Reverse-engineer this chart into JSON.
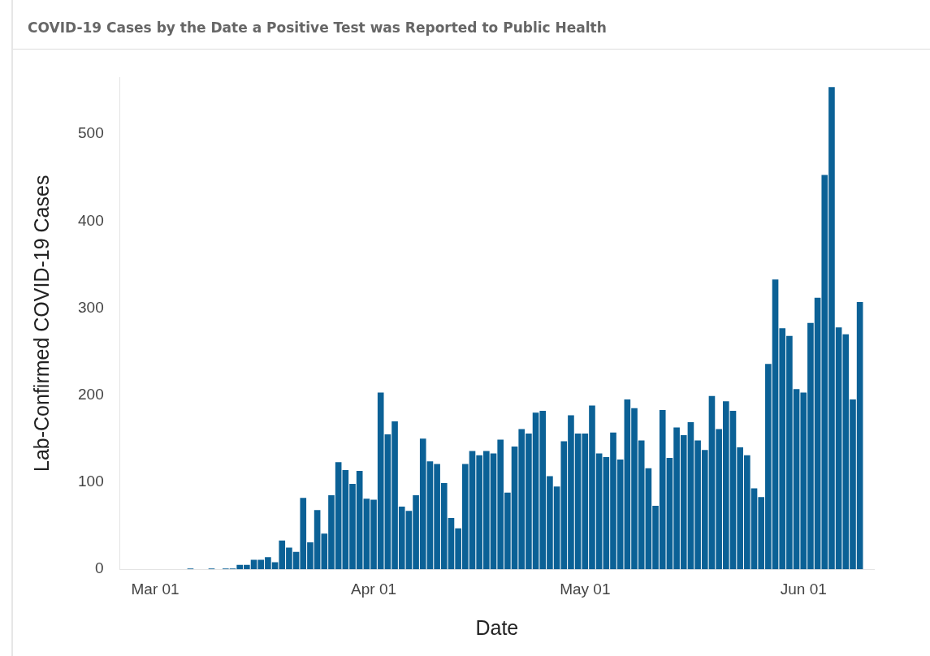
{
  "chart_data": {
    "type": "bar",
    "title": "COVID-19 Cases by the Date a Positive Test was Reported to Public Health",
    "xlabel": "Date",
    "ylabel": "Lab-Confirmed COVID-19 Cases",
    "x": [
      "--03-06",
      "--03-09",
      "--03-11",
      "--03-12",
      "--03-13",
      "--03-14",
      "--03-15",
      "--03-16",
      "--03-17",
      "--03-18",
      "--03-19",
      "--03-20",
      "--03-21",
      "--03-22",
      "--03-23",
      "--03-24",
      "--03-25",
      "--03-26",
      "--03-27",
      "--03-28",
      "--03-29",
      "--03-30",
      "--03-31",
      "--04-01",
      "--04-02",
      "--04-03",
      "--04-04",
      "--04-05",
      "--04-06",
      "--04-07",
      "--04-08",
      "--04-09",
      "--04-10",
      "--04-11",
      "--04-12",
      "--04-13",
      "--04-14",
      "--04-15",
      "--04-16",
      "--04-17",
      "--04-18",
      "--04-19",
      "--04-20",
      "--04-21",
      "--04-22",
      "--04-23",
      "--04-24",
      "--04-25",
      "--04-26",
      "--04-27",
      "--04-28",
      "--04-29",
      "--04-30",
      "--05-01",
      "--05-02",
      "--05-03",
      "--05-04",
      "--05-05",
      "--05-06",
      "--05-07",
      "--05-08",
      "--05-09",
      "--05-10",
      "--05-11",
      "--05-12",
      "--05-13",
      "--05-14",
      "--05-15",
      "--05-16",
      "--05-17",
      "--05-18",
      "--05-19",
      "--05-20",
      "--05-21",
      "--05-22",
      "--05-23",
      "--05-24",
      "--05-25",
      "--05-26",
      "--05-27",
      "--05-28",
      "--05-29",
      "--05-30",
      "--05-31",
      "--06-01",
      "--06-02",
      "--06-03",
      "--06-04",
      "--06-05",
      "--06-06",
      "--06-07",
      "--06-08",
      "--06-09"
    ],
    "values": [
      1,
      1,
      1,
      1,
      5,
      5,
      11,
      11,
      14,
      8,
      33,
      25,
      20,
      82,
      31,
      68,
      41,
      85,
      123,
      114,
      98,
      113,
      81,
      80,
      203,
      155,
      170,
      72,
      67,
      85,
      150,
      124,
      121,
      99,
      59,
      47,
      121,
      136,
      131,
      136,
      133,
      149,
      88,
      141,
      161,
      156,
      180,
      182,
      107,
      95,
      147,
      177,
      156,
      156,
      188,
      133,
      129,
      157,
      126,
      195,
      185,
      148,
      116,
      73,
      183,
      128,
      163,
      154,
      169,
      148,
      137,
      199,
      161,
      193,
      182,
      140,
      131,
      93,
      83,
      236,
      333,
      277,
      268,
      207,
      203,
      283,
      312,
      453,
      554,
      278,
      270,
      195,
      307
    ],
    "color": "#0b6196",
    "xlim": [
      "--02-24",
      "--06-11"
    ],
    "xticks": [
      {
        "value": "--03-01",
        "label": "Mar 01"
      },
      {
        "value": "--04-01",
        "label": "Apr 01"
      },
      {
        "value": "--05-01",
        "label": "May 01"
      },
      {
        "value": "--06-01",
        "label": "Jun 01"
      }
    ],
    "ylim": [
      0,
      565
    ],
    "yticks": [
      0,
      100,
      200,
      300,
      400,
      500
    ],
    "grid": false,
    "legend": false
  }
}
